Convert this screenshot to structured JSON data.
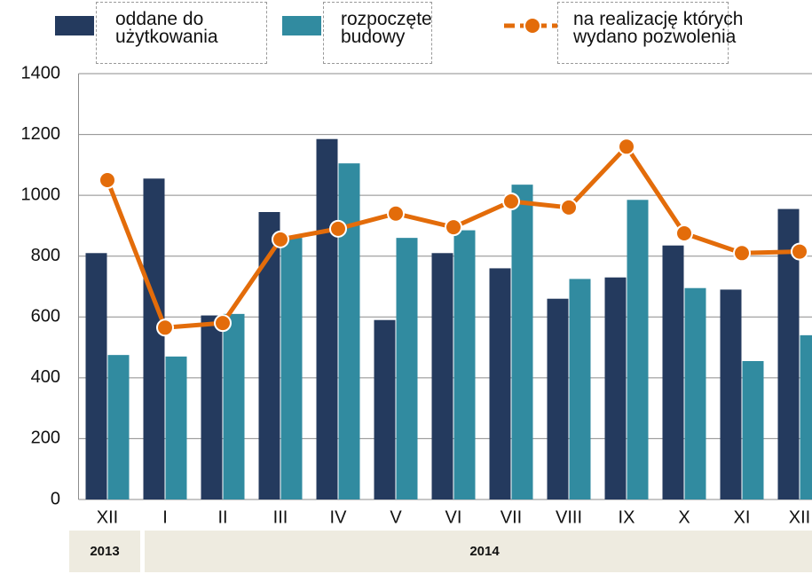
{
  "chart_data": {
    "type": "bar_line",
    "categories": [
      "XII",
      "I",
      "II",
      "III",
      "IV",
      "V",
      "VI",
      "VII",
      "VIII",
      "IX",
      "X",
      "XI",
      "XII"
    ],
    "series": [
      {
        "name": "oddane do użytkowania",
        "type": "bar",
        "color": "#243a5e",
        "values": [
          810,
          1055,
          605,
          945,
          1185,
          590,
          810,
          760,
          660,
          730,
          835,
          690,
          955
        ]
      },
      {
        "name": "rozpoczęte budowy",
        "type": "bar",
        "color": "#318ba0",
        "values": [
          475,
          470,
          610,
          860,
          1105,
          860,
          885,
          1035,
          725,
          985,
          695,
          455,
          540
        ]
      },
      {
        "name": "na realizację których wydano pozwolenia",
        "type": "line",
        "color": "#e36c0a",
        "values": [
          1050,
          565,
          580,
          855,
          890,
          940,
          895,
          980,
          960,
          1160,
          875,
          810,
          815
        ]
      }
    ],
    "years": [
      "2013",
      "2014"
    ],
    "ylim": [
      0,
      1400
    ],
    "yticks": [
      0,
      200,
      400,
      600,
      800,
      1000,
      1200,
      1400
    ],
    "grid": true
  }
}
